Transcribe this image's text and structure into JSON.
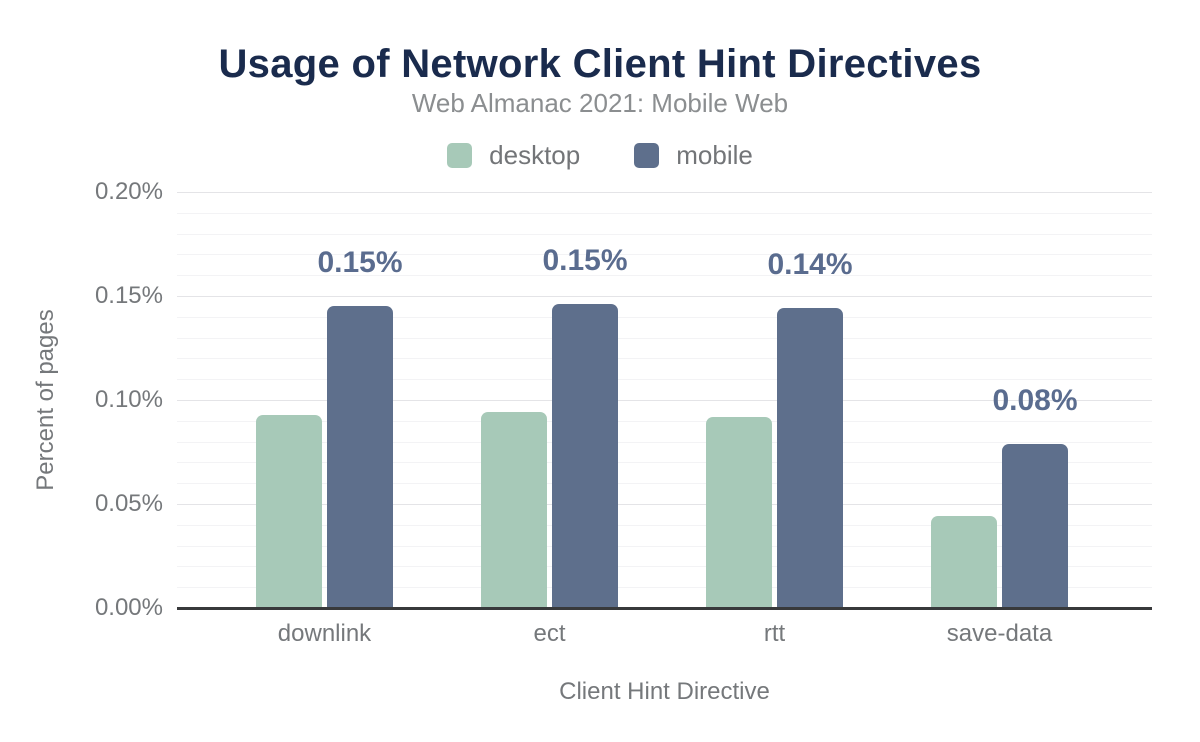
{
  "header": {
    "title": "Usage of Network Client Hint Directives",
    "subtitle": "Web Almanac 2021: Mobile Web"
  },
  "legend": [
    {
      "label": "desktop",
      "color": "#a7c9b8"
    },
    {
      "label": "mobile",
      "color": "#5e6f8c"
    }
  ],
  "axes": {
    "xlabel": "Client Hint Directive",
    "ylabel": "Percent of pages"
  },
  "chart_data": {
    "type": "bar",
    "title": "Usage of Network Client Hint Directives",
    "subtitle": "Web Almanac 2021: Mobile Web",
    "categories": [
      "downlink",
      "ect",
      "rtt",
      "save-data"
    ],
    "series": [
      {
        "name": "desktop",
        "color": "#a7c9b8",
        "values": [
          0.093,
          0.094,
          0.092,
          0.044
        ]
      },
      {
        "name": "mobile",
        "color": "#5e6f8c",
        "values": [
          0.145,
          0.146,
          0.144,
          0.079
        ]
      }
    ],
    "value_unit": "percent of pages",
    "data_labels": {
      "on_series": "mobile",
      "values": [
        "0.15%",
        "0.15%",
        "0.14%",
        "0.08%"
      ]
    },
    "xlabel": "Client Hint Directive",
    "ylabel": "Percent of pages",
    "ylim": [
      0,
      0.2
    ],
    "y_ticks": [
      {
        "value": 0.0,
        "label": "0.00%"
      },
      {
        "value": 0.05,
        "label": "0.05%"
      },
      {
        "value": 0.1,
        "label": "0.10%"
      },
      {
        "value": 0.15,
        "label": "0.15%"
      },
      {
        "value": 0.2,
        "label": "0.20%"
      }
    ],
    "grid": {
      "major_interval": 0.05,
      "minor_interval": 0.01,
      "visible": true
    },
    "legend_position": "top"
  },
  "colors": {
    "title": "#1a2b4d",
    "muted_text": "#75787b",
    "data_label": "#5a6c8f",
    "axis_line": "#38393b",
    "major_grid": "#e4e4e7",
    "minor_grid": "#f3f3f5"
  }
}
